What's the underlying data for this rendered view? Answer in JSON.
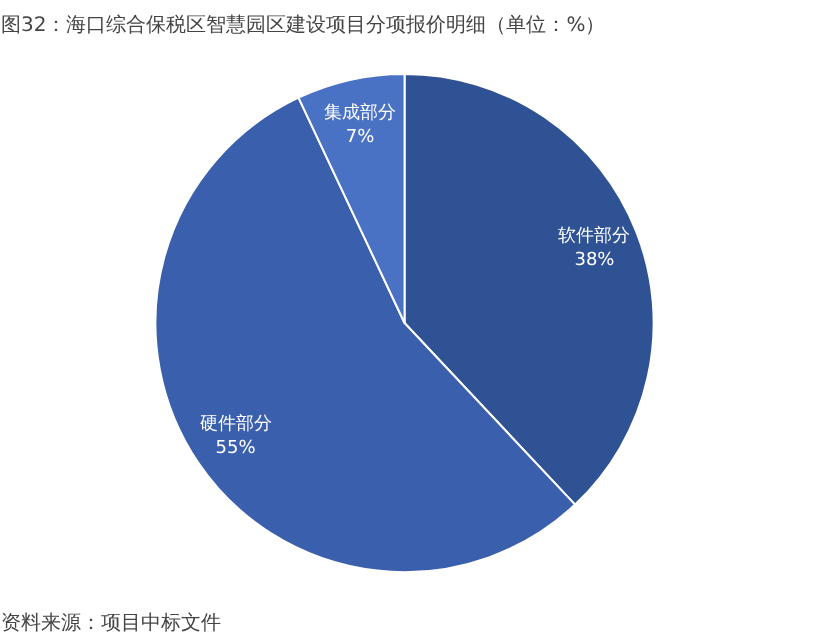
{
  "chart_data": {
    "type": "pie",
    "title": "图32：海口综合保税区智慧园区建设项目分项报价明细（单位：%）",
    "categories": [
      "软件部分",
      "硬件部分",
      "集成部分"
    ],
    "values": [
      38,
      55,
      7
    ],
    "colors": [
      "#2f5294",
      "#3a5fac",
      "#4a72c4"
    ],
    "value_labels": [
      "38%",
      "55%",
      "7%"
    ],
    "annotations": [
      "资料来源：项目中标文件"
    ]
  }
}
